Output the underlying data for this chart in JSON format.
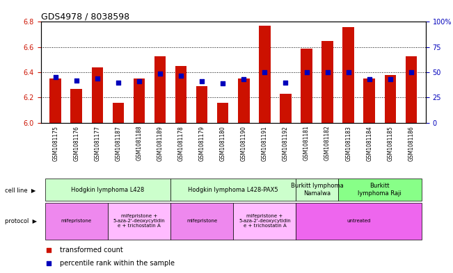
{
  "title": "GDS4978 / 8038598",
  "samples": [
    "GSM1081175",
    "GSM1081176",
    "GSM1081177",
    "GSM1081187",
    "GSM1081188",
    "GSM1081189",
    "GSM1081178",
    "GSM1081179",
    "GSM1081180",
    "GSM1081190",
    "GSM1081191",
    "GSM1081192",
    "GSM1081181",
    "GSM1081182",
    "GSM1081183",
    "GSM1081184",
    "GSM1081185",
    "GSM1081186"
  ],
  "red_values": [
    6.35,
    6.27,
    6.44,
    6.16,
    6.35,
    6.53,
    6.45,
    6.29,
    6.16,
    6.35,
    6.77,
    6.23,
    6.59,
    6.65,
    6.76,
    6.35,
    6.38,
    6.53
  ],
  "blue_percentiles": [
    45,
    42,
    44,
    40,
    41,
    49,
    47,
    41,
    39,
    43,
    50,
    40,
    50,
    50,
    50,
    43,
    43,
    50
  ],
  "y_min": 6.0,
  "y_max": 6.8,
  "y_ticks_left": [
    6.0,
    6.2,
    6.4,
    6.6,
    6.8
  ],
  "y_ticks_right": [
    0,
    25,
    50,
    75,
    100
  ],
  "bar_color": "#cc1100",
  "blue_color": "#0000bb",
  "cell_lines": [
    {
      "label": "Hodgkin lymphoma L428",
      "start": 0,
      "end": 6,
      "color": "#ccffcc"
    },
    {
      "label": "Hodgkin lymphoma L428-PAX5",
      "start": 6,
      "end": 12,
      "color": "#ccffcc"
    },
    {
      "label": "Burkitt lymphoma\nNamalwa",
      "start": 12,
      "end": 14,
      "color": "#ccffcc"
    },
    {
      "label": "Burkitt\nlymphoma Raji",
      "start": 14,
      "end": 18,
      "color": "#88ff88"
    }
  ],
  "protocols": [
    {
      "label": "mifepristone",
      "start": 0,
      "end": 3,
      "color": "#ee88ee"
    },
    {
      "label": "mifepristone +\n5-aza-2'-deoxycytidin\ne + trichostatin A",
      "start": 3,
      "end": 6,
      "color": "#ffbbff"
    },
    {
      "label": "mifepristone",
      "start": 6,
      "end": 9,
      "color": "#ee88ee"
    },
    {
      "label": "mifepristone +\n5-aza-2'-deoxycytidin\ne + trichostatin A",
      "start": 9,
      "end": 12,
      "color": "#ffbbff"
    },
    {
      "label": "untreated",
      "start": 12,
      "end": 18,
      "color": "#ee66ee"
    }
  ]
}
